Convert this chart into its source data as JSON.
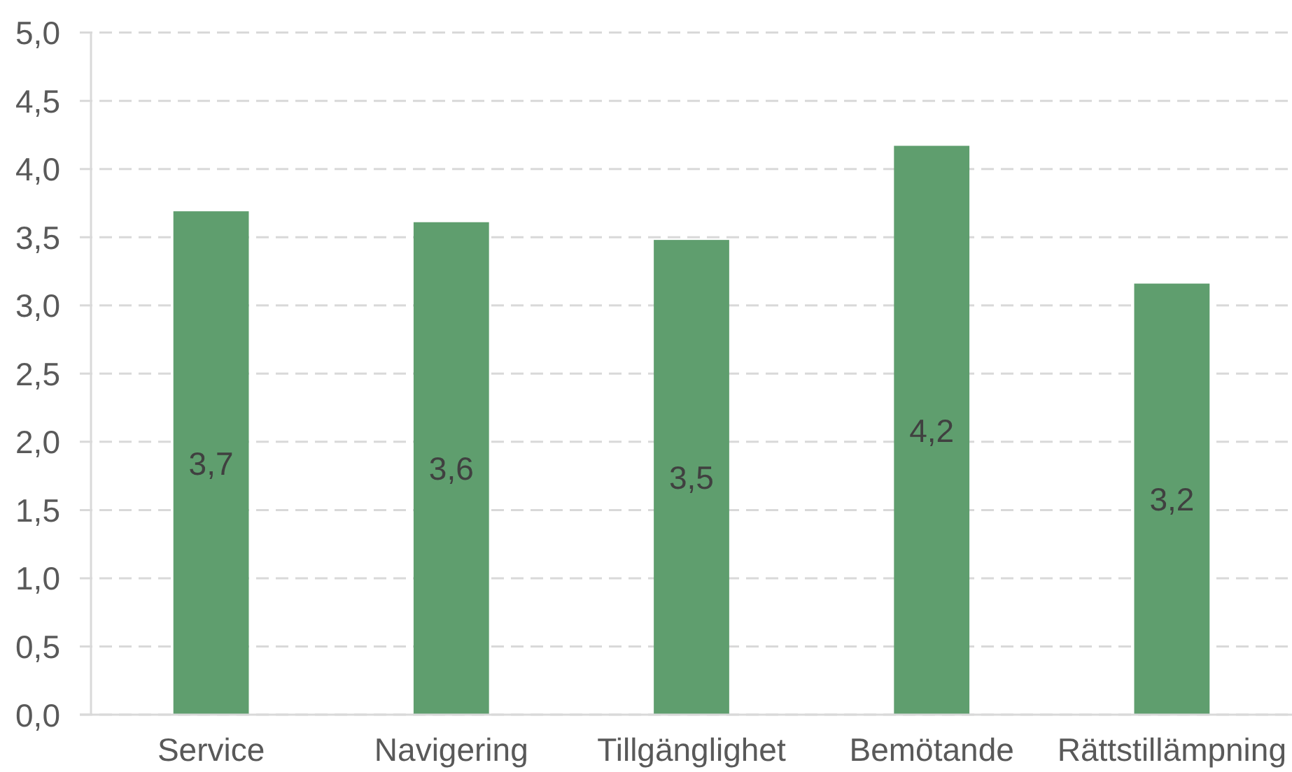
{
  "chart_data": {
    "type": "bar",
    "categories": [
      "Service",
      "Navigering",
      "Tillgänglighet",
      "Bemötande",
      "Rättstillämpning"
    ],
    "values": [
      3.69,
      3.61,
      3.48,
      4.17,
      3.16
    ],
    "value_labels": [
      "3,7",
      "3,6",
      "3,5",
      "4,2",
      "3,2"
    ],
    "color": "#5f9e6e",
    "ylim": [
      0,
      5
    ],
    "yticks": [
      {
        "value": 0,
        "label": "0,0"
      },
      {
        "value": 0.5,
        "label": "0,5"
      },
      {
        "value": 1,
        "label": "1,0"
      },
      {
        "value": 1.5,
        "label": "1,5"
      },
      {
        "value": 2,
        "label": "2,0"
      },
      {
        "value": 2.5,
        "label": "2,5"
      },
      {
        "value": 3,
        "label": "3,0"
      },
      {
        "value": 3.5,
        "label": "3,5"
      },
      {
        "value": 4,
        "label": "4,0"
      },
      {
        "value": 4.5,
        "label": "4,5"
      },
      {
        "value": 5,
        "label": "5,0"
      }
    ],
    "grid": "y"
  }
}
